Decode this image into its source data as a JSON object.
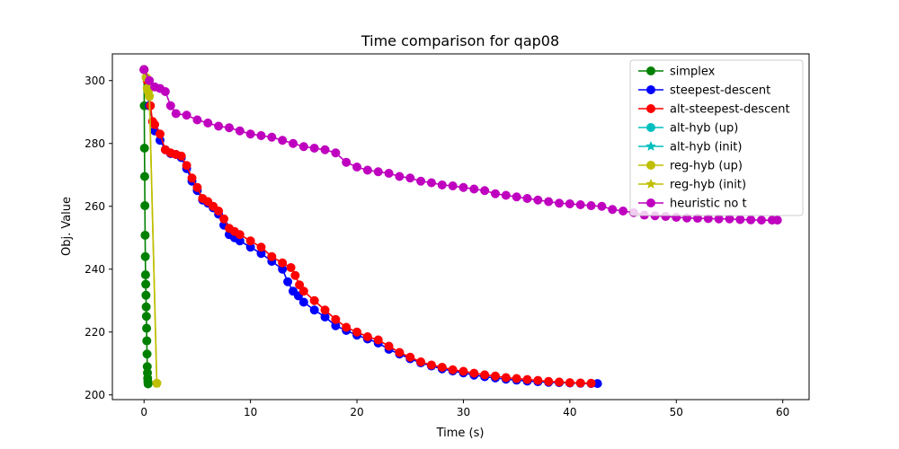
{
  "chart_data": {
    "type": "line",
    "title": "Time comparison for qap08",
    "xlabel": "Time (s)",
    "ylabel": "Obj. Value",
    "xlim": [
      -2.975,
      62.475
    ],
    "ylim": [
      198.5,
      308.5
    ],
    "x_ticks": [
      0,
      10,
      20,
      30,
      40,
      50,
      60
    ],
    "y_ticks": [
      200,
      220,
      240,
      260,
      280,
      300
    ],
    "grid": false,
    "legend_position": "top-right",
    "series": [
      {
        "name": "simplex",
        "color": "#008000",
        "marker": "circle",
        "x": [
          0,
          0.02,
          0.04,
          0.06,
          0.08,
          0.1,
          0.12,
          0.14,
          0.16,
          0.18,
          0.2,
          0.22,
          0.24,
          0.26,
          0.28,
          0.3,
          0.32,
          0.34,
          0.36,
          0.38
        ],
        "y": [
          303.5,
          292,
          278.5,
          269.5,
          260.2,
          250.8,
          244,
          238.2,
          235.2,
          231.7,
          228,
          225,
          221.2,
          217.2,
          213,
          209,
          207,
          205.3,
          204.3,
          203.5
        ]
      },
      {
        "name": "steepest-descent",
        "color": "#0000ff",
        "marker": "circle",
        "x": [
          0,
          0.5,
          1,
          1.5,
          2,
          2.5,
          3,
          3.5,
          4,
          4.5,
          5,
          5.5,
          6,
          6.5,
          7,
          7.5,
          8,
          8.5,
          9,
          10,
          11,
          12,
          13,
          13.5,
          14,
          14.5,
          15,
          16,
          17,
          18,
          19,
          20,
          21,
          22,
          23,
          24,
          25,
          26,
          27,
          28,
          29,
          30,
          31,
          32,
          33,
          34,
          35,
          36,
          37,
          38,
          39,
          40,
          41,
          42,
          42.6
        ],
        "y": [
          303.5,
          292,
          284,
          281,
          278,
          276.8,
          276.5,
          275.5,
          272,
          268,
          265,
          262,
          261,
          259.5,
          257.5,
          254,
          251,
          250,
          249,
          247,
          245,
          242.5,
          240,
          236,
          233,
          231.5,
          229.5,
          227,
          224.8,
          222,
          220.5,
          219,
          217.8,
          216.5,
          214.5,
          213,
          211.5,
          210.2,
          209.2,
          208.3,
          207.6,
          207,
          206.3,
          205.8,
          205.4,
          205,
          204.7,
          204.4,
          204.2,
          204,
          203.9,
          203.8,
          203.7,
          203.6,
          203.6
        ]
      },
      {
        "name": "alt-steepest-descent",
        "color": "#ff0000",
        "marker": "circle",
        "x": [
          0,
          0.3,
          0.6,
          0.8,
          1,
          1.5,
          2,
          2.5,
          3,
          3.5,
          4,
          4.5,
          5,
          5.5,
          6,
          6.5,
          7,
          7.5,
          8,
          8.5,
          9,
          10,
          11,
          12,
          13,
          13.8,
          14.2,
          14.6,
          15,
          16,
          17,
          18,
          19,
          20,
          21,
          22,
          23,
          24,
          25,
          26,
          27,
          28,
          29,
          30,
          31,
          32,
          33,
          34,
          35,
          36,
          37,
          38,
          39,
          40,
          41,
          42
        ],
        "y": [
          303.5,
          300,
          292,
          287,
          286,
          283,
          278,
          277,
          276.5,
          276,
          273,
          269,
          266,
          262.5,
          261.5,
          260,
          258.5,
          256,
          253,
          252,
          251,
          249,
          247,
          244,
          242,
          240.5,
          238,
          235,
          233,
          230,
          227,
          224,
          221.5,
          220,
          218.5,
          217.5,
          215.5,
          213.5,
          212,
          210.5,
          209.5,
          208.8,
          208,
          207.5,
          206.9,
          206.4,
          206,
          205.5,
          205.2,
          204.9,
          204.6,
          204.3,
          204.1,
          203.9,
          203.8,
          203.7
        ]
      },
      {
        "name": "alt-hyb (up)",
        "color": "#00bfbf",
        "marker": "circle",
        "x": [],
        "y": []
      },
      {
        "name": "alt-hyb (init)",
        "color": "#00bfbf",
        "marker": "star",
        "x": [],
        "y": []
      },
      {
        "name": "reg-hyb (up)",
        "color": "#bfbf00",
        "marker": "circle",
        "x": [
          0.2,
          0.3,
          0.4,
          0.5,
          1.2
        ],
        "y": [
          301,
          297.5,
          296.5,
          295,
          203.7
        ]
      },
      {
        "name": "reg-hyb (init)",
        "color": "#bfbf00",
        "marker": "star",
        "x": [
          0.2,
          0.3,
          0.4,
          0.5,
          1.2
        ],
        "y": [
          301,
          297.5,
          296.5,
          295,
          203.7
        ]
      },
      {
        "name": "heuristic no t",
        "color": "#bf00bf",
        "marker": "circle",
        "x": [
          0,
          0.5,
          1,
          1.5,
          2,
          2.5,
          3,
          4,
          5,
          6,
          7,
          8,
          9,
          10,
          11,
          12,
          13,
          14,
          15,
          16,
          17,
          18,
          19,
          20,
          21,
          22,
          23,
          24,
          25,
          26,
          27,
          28,
          29,
          30,
          31,
          32,
          33,
          34,
          35,
          36,
          37,
          38,
          39,
          40,
          41,
          42,
          43,
          44,
          45,
          46,
          47,
          48,
          49,
          50,
          51,
          52,
          53,
          54,
          55,
          56,
          57,
          58,
          59,
          59.5
        ],
        "y": [
          303.5,
          300,
          298,
          297.5,
          296.5,
          292,
          289.5,
          289,
          287.5,
          286.5,
          285.5,
          285,
          284,
          283,
          282.5,
          282,
          281,
          280,
          279,
          278.5,
          278,
          277,
          274,
          272.5,
          271.5,
          271,
          270.5,
          269.5,
          269,
          268,
          267.5,
          266.8,
          266.5,
          266,
          265.5,
          265,
          264,
          263.5,
          263,
          262.5,
          262,
          261.5,
          261,
          260.8,
          260.5,
          260.2,
          260,
          259,
          258.5,
          258,
          257.2,
          257,
          256.8,
          256.5,
          256.3,
          256.2,
          256.1,
          256,
          256,
          255.8,
          255.7,
          255.6,
          255.6,
          255.6
        ]
      }
    ]
  }
}
